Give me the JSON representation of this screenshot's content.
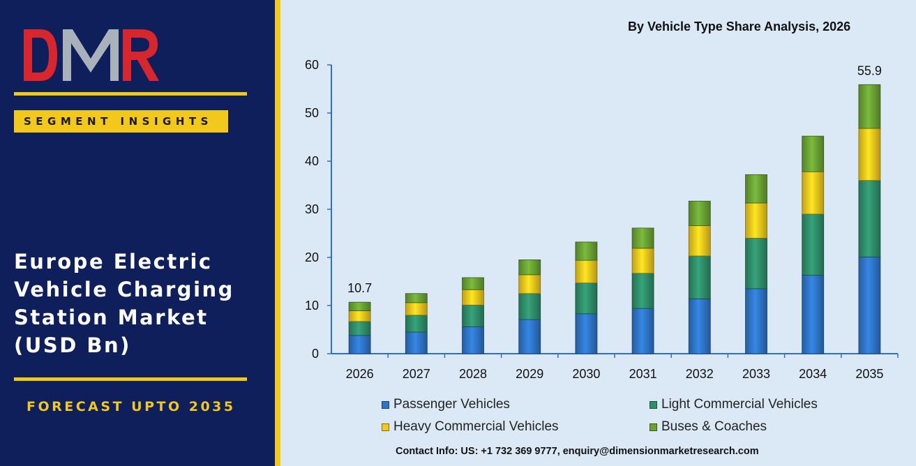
{
  "brand": {
    "logo_text": "DMR",
    "badge": "SEGMENT INSIGHTS",
    "market_title": "Europe Electric Vehicle Charging Station Market (USD Bn)",
    "forecast": "FORECAST UPTO 2035",
    "colors": {
      "navy": "#0e1f5c",
      "gold": "#f2c81d",
      "logo_red": "#d7262e",
      "logo_grey": "#a9b2bb"
    }
  },
  "contact": "Contact Info: US: +1 732 369 9777, enquiry@dimensionmarketresearch.com",
  "chart_data": {
    "type": "bar",
    "stacked": true,
    "title": "By Vehicle Type Share Analysis, 2026",
    "categories": [
      "2026",
      "2027",
      "2028",
      "2029",
      "2030",
      "2031",
      "2032",
      "2033",
      "2034",
      "2035"
    ],
    "series": [
      {
        "name": "Passenger Vehicles",
        "color": "#2e75c8",
        "values": [
          3.8,
          4.5,
          5.6,
          7.1,
          8.3,
          9.4,
          11.4,
          13.5,
          16.3,
          20.1
        ]
      },
      {
        "name": "Light Commercial Vehicles",
        "color": "#2f8f6a",
        "values": [
          2.9,
          3.5,
          4.5,
          5.4,
          6.4,
          7.3,
          8.9,
          10.5,
          12.7,
          15.9
        ]
      },
      {
        "name": "Heavy Commercial Vehicles",
        "color": "#f2c81d",
        "values": [
          2.2,
          2.6,
          3.2,
          3.9,
          4.7,
          5.2,
          6.3,
          7.3,
          8.8,
          10.8
        ]
      },
      {
        "name": "Buses & Coaches",
        "color": "#6aa334",
        "values": [
          1.8,
          1.9,
          2.5,
          3.1,
          3.8,
          4.2,
          5.1,
          5.9,
          7.4,
          9.1
        ]
      }
    ],
    "data_labels": [
      {
        "category": "2026",
        "text": "10.7"
      },
      {
        "category": "2035",
        "text": "55.9"
      }
    ],
    "ylim": [
      0,
      60
    ],
    "yticks": [
      0,
      10,
      20,
      30,
      40,
      50,
      60
    ],
    "xlabel": "",
    "ylabel": "",
    "grid": false,
    "legend": "bottom"
  }
}
